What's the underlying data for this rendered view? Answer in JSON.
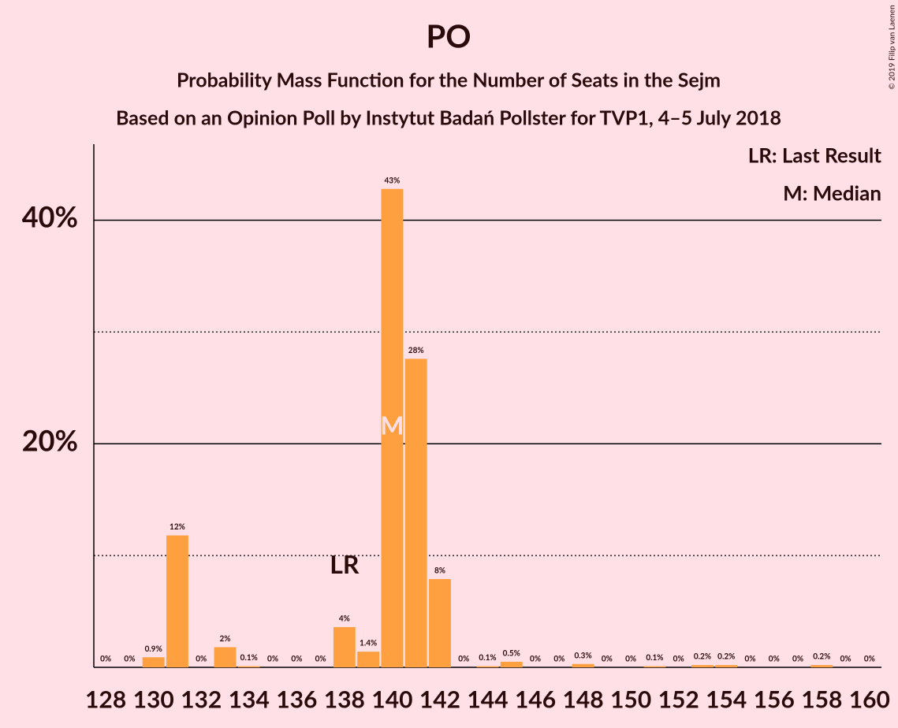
{
  "chart_data": {
    "type": "bar",
    "title": "PO",
    "subtitle": "Probability Mass Function for the Number of Seats in the Sejm",
    "subtitle2": "Based on an Opinion Poll by Instytut Badań Pollster for TVP1, 4–5 July 2018",
    "copyright": "© 2019 Filip van Laenen",
    "legend": [
      "LR: Last Result",
      "M: Median"
    ],
    "categories": [
      "128",
      null,
      "130",
      null,
      "132",
      null,
      "134",
      null,
      "136",
      null,
      "138",
      null,
      "140",
      null,
      "142",
      null,
      "144",
      null,
      "146",
      null,
      "148",
      null,
      "150",
      null,
      "152",
      null,
      "154",
      null,
      "156",
      null,
      "158",
      null,
      "160"
    ],
    "values": [
      0,
      0,
      0.9,
      11.8,
      0,
      1.8,
      0.1,
      0,
      0,
      0,
      3.6,
      1.4,
      42.8,
      27.6,
      7.9,
      0,
      0.1,
      0.5,
      0,
      0,
      0.3,
      0,
      0,
      0.1,
      0,
      0.2,
      0.2,
      0,
      0,
      0,
      0.2,
      0,
      0
    ],
    "value_labels": [
      "0%",
      "0%",
      "0.9%",
      "12%",
      "0%",
      "2%",
      "0.1%",
      "0%",
      "0%",
      "0%",
      "4%",
      "1.4%",
      "43%",
      "28%",
      "8%",
      "0%",
      "0.1%",
      "0.5%",
      "0%",
      "0%",
      "0.3%",
      "0%",
      "0%",
      "0.1%",
      "0%",
      "0.2%",
      "0.2%",
      "0%",
      "0%",
      "0%",
      "0.2%",
      "0%",
      "0%"
    ],
    "color": "#ffa040",
    "last_result": {
      "label": "LR",
      "index": 10
    },
    "median": {
      "label": "M",
      "index": 12
    },
    "ylim": [
      0,
      46.8
    ],
    "yticks": [
      {
        "value": 20,
        "label": "20%"
      },
      {
        "value": 40,
        "label": "40%"
      }
    ],
    "minor_yticks": [
      10,
      30
    ],
    "grid": true
  }
}
